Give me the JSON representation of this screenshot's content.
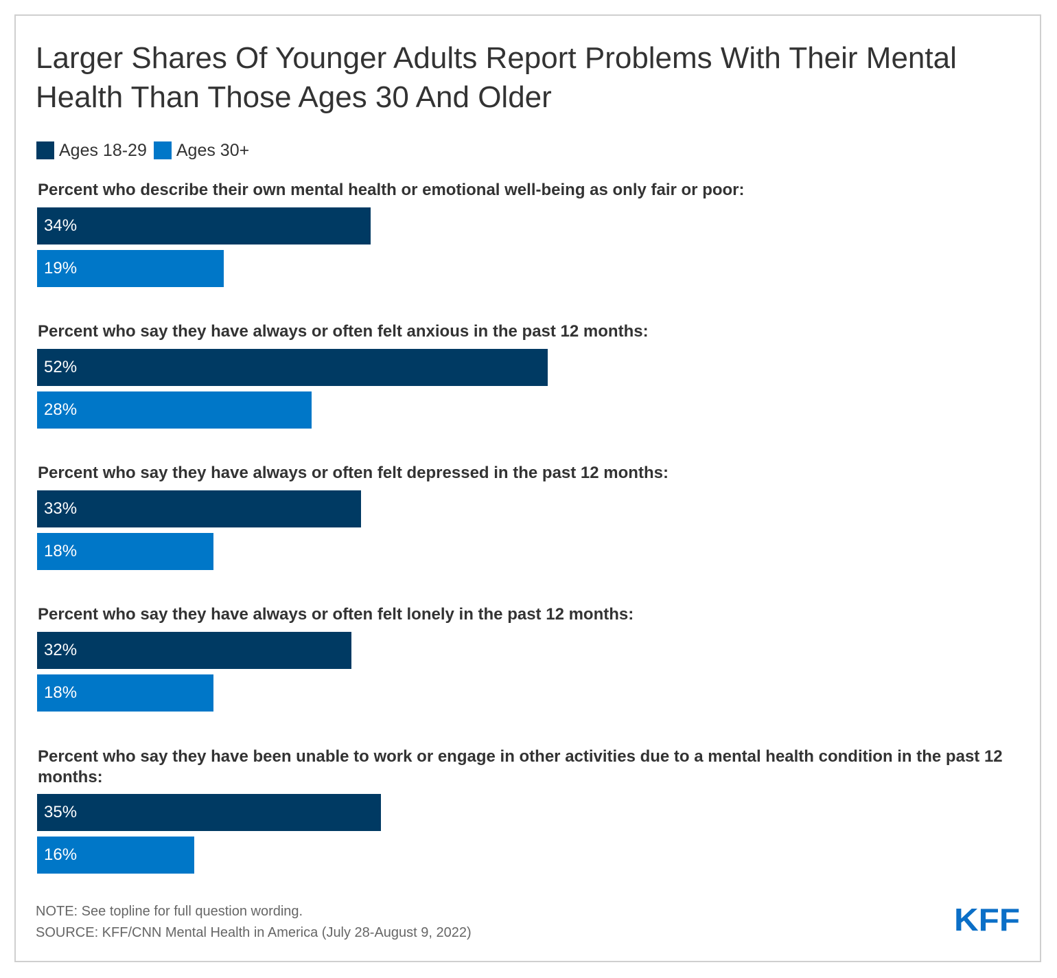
{
  "title": "Larger Shares Of Younger Adults Report Problems With Their Mental Health Than Those Ages 30 And Older",
  "colors": {
    "ages_18_29": "#003a63",
    "ages_30_plus": "#0077c8",
    "logo": "#0b6fc7"
  },
  "legend": {
    "series_a": "Ages 18-29",
    "series_b": "Ages 30+"
  },
  "chart_data": {
    "type": "bar",
    "orientation": "horizontal",
    "title": "Larger Shares Of Younger Adults Report Problems With Their Mental Health Than Those Ages 30 And Older",
    "xlim": [
      0,
      100
    ],
    "categories": [
      "Percent who describe their own mental health or emotional well-being as only fair or poor:",
      "Percent who say they have always or often felt anxious in the past 12 months:",
      "Percent who say they have always or often felt depressed in the past 12 months:",
      "Percent who say they have always or often felt lonely in the past 12 months:",
      "Percent who say they have been unable to work or engage in other activities due to a mental health condition in the past 12 months:"
    ],
    "series": [
      {
        "name": "Ages 18-29",
        "values": [
          34,
          52,
          33,
          32,
          35
        ],
        "labels": [
          "34%",
          "52%",
          "33%",
          "32%",
          "35%"
        ]
      },
      {
        "name": "Ages 30+",
        "values": [
          19,
          28,
          18,
          18,
          16
        ],
        "labels": [
          "19%",
          "28%",
          "18%",
          "18%",
          "16%"
        ]
      }
    ]
  },
  "footer": {
    "note": "NOTE: See topline for full question wording.",
    "source": "SOURCE: KFF/CNN Mental Health in America (July 28-August 9, 2022)",
    "logo_text": "KFF"
  }
}
